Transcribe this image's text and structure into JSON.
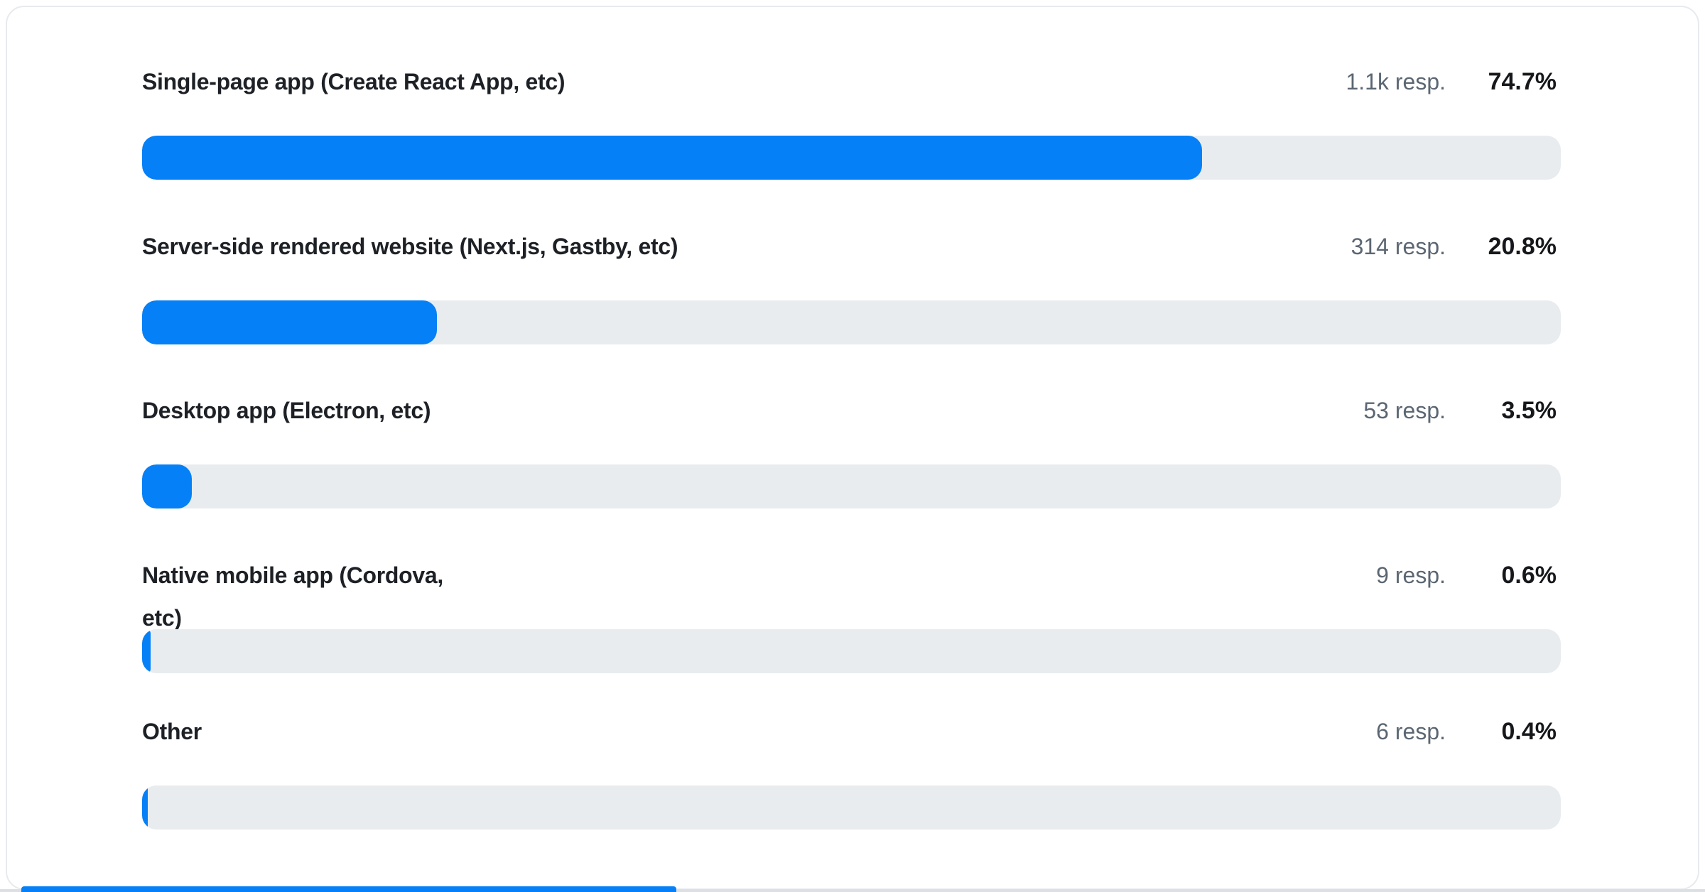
{
  "chart_data": {
    "type": "bar",
    "orientation": "horizontal",
    "title": "",
    "xlabel": "",
    "ylabel": "",
    "value_axis_range": [
      0,
      100
    ],
    "unit": "%",
    "grid": false,
    "legend": "none",
    "bar_color": "#0680f6",
    "track_color": "#e9ecef",
    "categories": [
      "Single-page app (Create React App, etc)",
      "Server-side rendered website (Next.js, Gastby, etc)",
      "Desktop app (Electron, etc)",
      "Native mobile app (Cordova, etc)",
      "Other"
    ],
    "values": [
      74.7,
      20.8,
      3.5,
      0.6,
      0.4
    ],
    "response_counts": [
      "1.1k",
      "314",
      "53",
      "9",
      "6"
    ],
    "rows": [
      {
        "label": "Single-page app (Create React App, etc)",
        "responses": "1.1k resp.",
        "percent": "74.7%",
        "value": 74.7
      },
      {
        "label": "Server-side rendered website (Next.js, Gastby, etc)",
        "responses": "314 resp.",
        "percent": "20.8%",
        "value": 20.8
      },
      {
        "label": "Desktop app (Electron, etc)",
        "responses": "53 resp.",
        "percent": "3.5%",
        "value": 3.5
      },
      {
        "label": "Native mobile app (Cordova,\netc)",
        "responses": "9 resp.",
        "percent": "0.6%",
        "value": 0.6
      },
      {
        "label": "Other",
        "responses": "6 resp.",
        "percent": "0.4%",
        "value": 0.4
      }
    ]
  }
}
